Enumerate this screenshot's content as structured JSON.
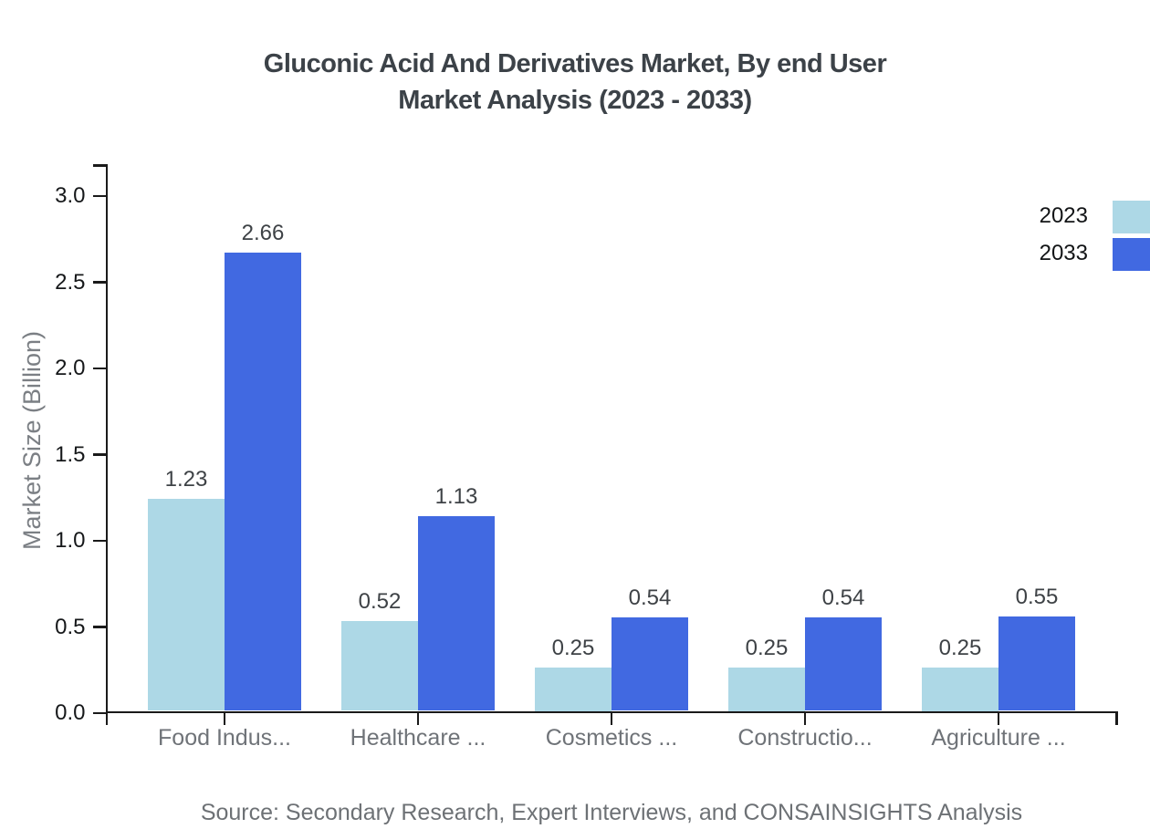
{
  "title": {
    "line1": "Gluconic Acid And Derivatives Market, By end User",
    "line2": "Market Analysis (2023 - 2033)"
  },
  "source": "Source: Secondary Research, Expert Interviews, and CONSAINSIGHTS Analysis",
  "legend": {
    "items": [
      {
        "label": "2023",
        "color": "#ADD8E6"
      },
      {
        "label": "2033",
        "color": "#4169E1"
      }
    ]
  },
  "colors": {
    "series_2023": "#ADD8E6",
    "series_2033": "#4169E1",
    "axis": "#1a1a1a",
    "title_text": "#3c4248",
    "muted_text": "#6f7378"
  },
  "chart_data": {
    "type": "bar",
    "title": "Gluconic Acid And Derivatives Market, By end User Market Analysis (2023 - 2033)",
    "categories": [
      "Food Indus...",
      "Healthcare ...",
      "Cosmetics ...",
      "Constructio...",
      "Agriculture ..."
    ],
    "series": [
      {
        "name": "2023",
        "color": "#ADD8E6",
        "values": [
          1.23,
          0.52,
          0.25,
          0.25,
          0.25
        ]
      },
      {
        "name": "2033",
        "color": "#4169E1",
        "values": [
          2.66,
          1.13,
          0.54,
          0.54,
          0.55
        ]
      }
    ],
    "xlabel": "",
    "ylabel": "Market Size (Billion)",
    "ylim": [
      0,
      3.2
    ],
    "yticks": [
      0.0,
      0.5,
      1.0,
      1.5,
      2.0,
      2.5,
      3.0
    ],
    "grid": false,
    "legend_position": "top-right",
    "value_labels": true
  }
}
